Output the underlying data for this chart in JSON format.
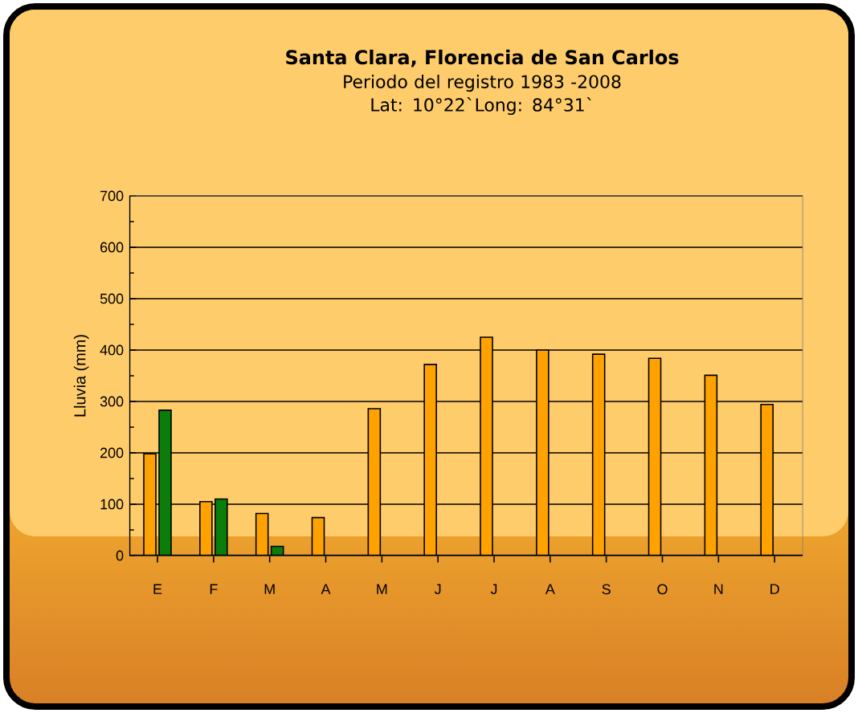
{
  "chart_data": {
    "type": "bar",
    "title": "Santa Clara, Florencia de San Carlos",
    "subtitle": "Periodo del registro  1983 -2008\nLat: 10°22`Long: 84°31`",
    "ylabel": "Lluvia (mm)",
    "categories": [
      "E",
      "F",
      "M",
      "A",
      "M",
      "J",
      "J",
      "A",
      "S",
      "O",
      "N",
      "D"
    ],
    "series": [
      {
        "color": "#ffa200",
        "values": [
          198,
          105,
          82,
          74,
          286,
          372,
          425,
          400,
          392,
          384,
          351,
          294
        ]
      },
      {
        "color": "#0a7d0a",
        "values": [
          283,
          110,
          18,
          null,
          null,
          null,
          null,
          null,
          null,
          null,
          null,
          null
        ]
      }
    ],
    "ylim": [
      0,
      700
    ],
    "yticks": [
      0,
      100,
      200,
      300,
      400,
      500,
      600,
      700
    ],
    "grid": "y"
  }
}
